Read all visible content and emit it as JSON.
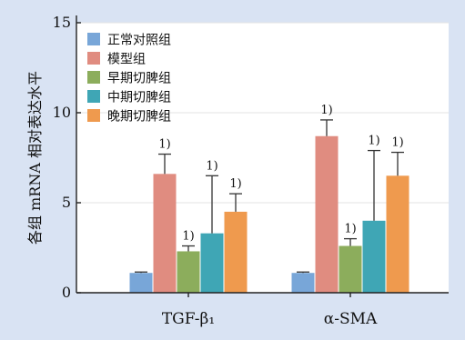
{
  "chart_data": {
    "type": "bar",
    "categories": [
      "TGF-β₁",
      "α-SMA"
    ],
    "series": [
      {
        "name": "正常对照组",
        "color": "#78a6d8",
        "values": [
          1.1,
          1.1
        ],
        "errors": [
          0.05,
          0.05
        ],
        "annotations": [
          "",
          ""
        ]
      },
      {
        "name": "模型组",
        "color": "#e08c80",
        "values": [
          6.6,
          8.7
        ],
        "errors": [
          1.1,
          0.9
        ],
        "annotations": [
          "1)",
          "1)"
        ]
      },
      {
        "name": "早期切脾组",
        "color": "#8cad5c",
        "values": [
          2.3,
          2.6
        ],
        "errors": [
          0.3,
          0.4
        ],
        "annotations": [
          "1)",
          "1)"
        ]
      },
      {
        "name": "中期切脾组",
        "color": "#3fa6b5",
        "values": [
          3.3,
          4.0
        ],
        "errors": [
          3.2,
          3.9
        ],
        "annotations": [
          "1)",
          "1)"
        ]
      },
      {
        "name": "晚期切脾组",
        "color": "#ef9a4e",
        "values": [
          4.5,
          6.5
        ],
        "errors": [
          1.0,
          1.3
        ],
        "annotations": [
          "1)",
          "1)"
        ]
      }
    ],
    "ylabel": "各组 mRNA 相对表达水平",
    "xlabel": "",
    "ylim": [
      0,
      15
    ],
    "yticks": [
      0,
      5,
      10,
      15
    ],
    "grid": true,
    "legend_position": "top-left"
  }
}
